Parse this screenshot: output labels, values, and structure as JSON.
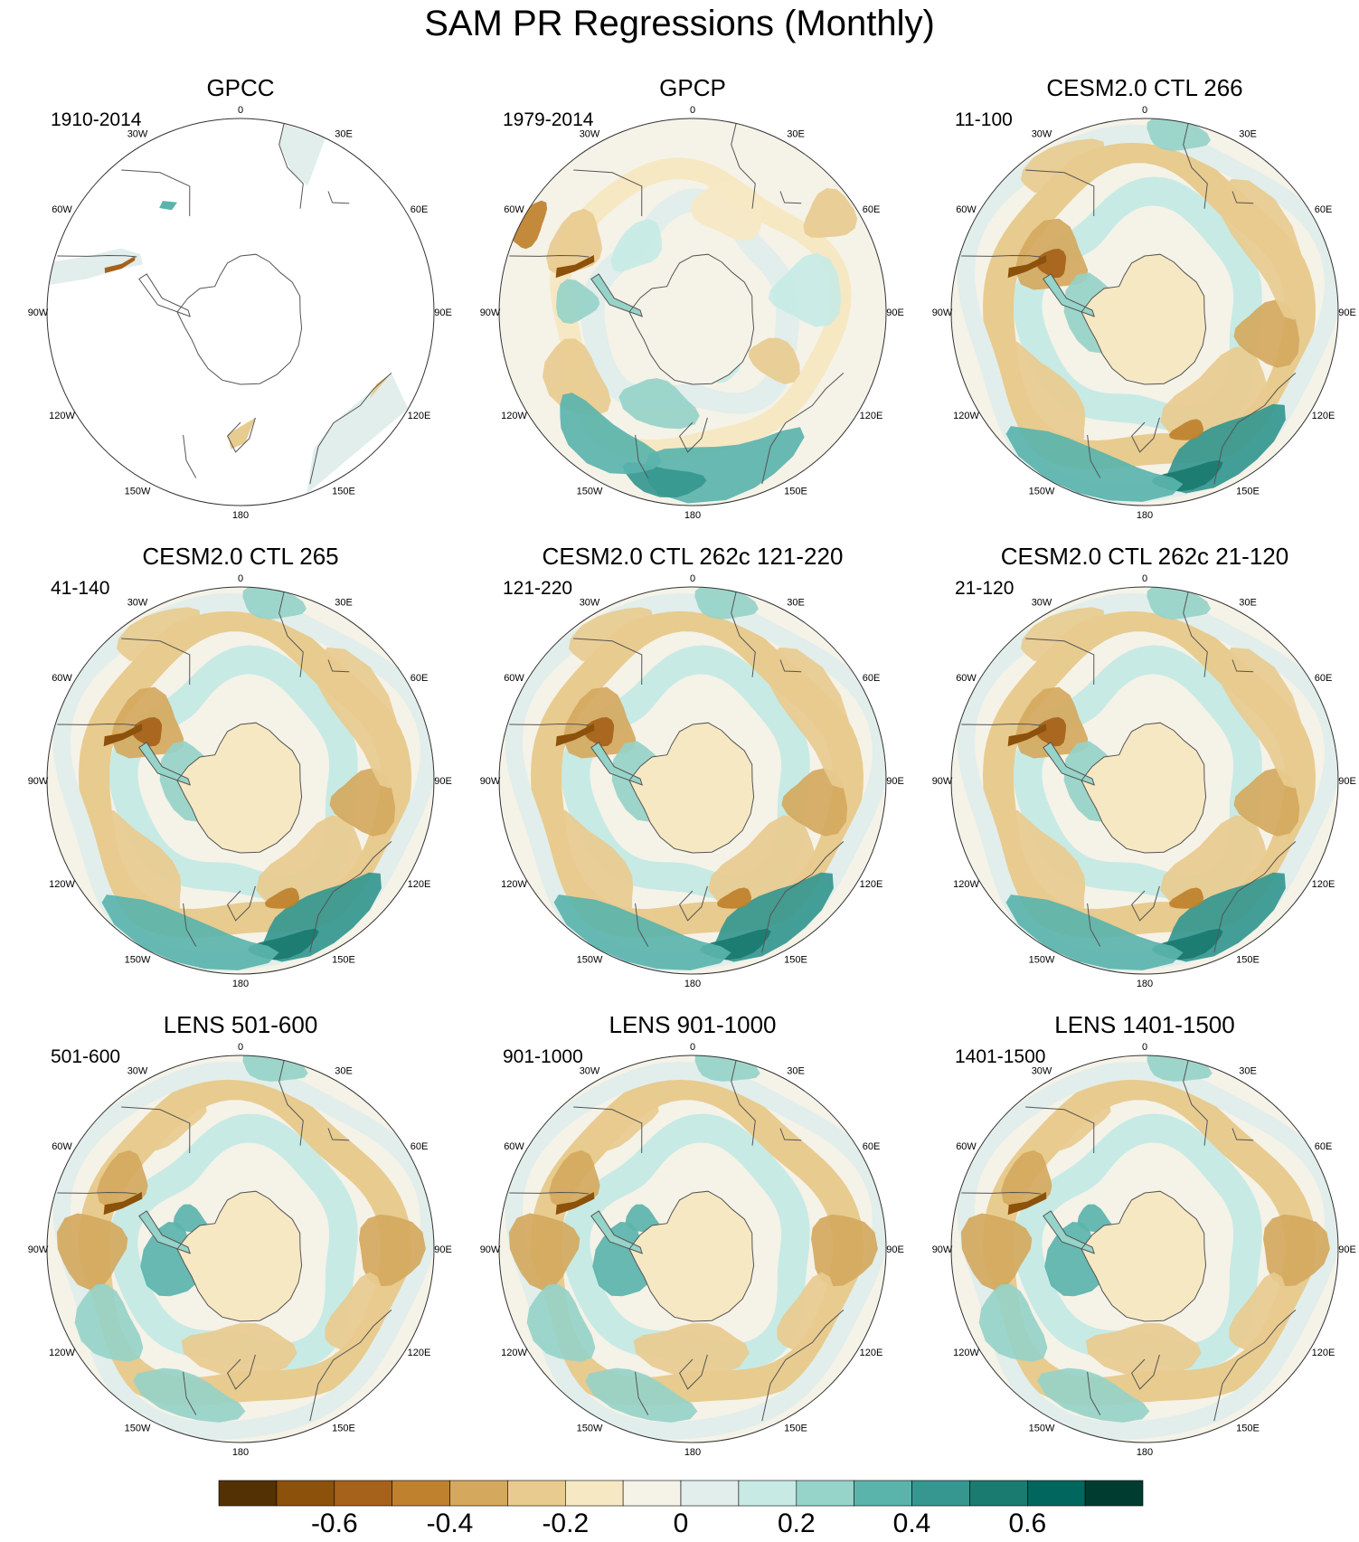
{
  "figure": {
    "title": "SAM PR Regressions (Monthly)"
  },
  "lon_labels": [
    "0",
    "30E",
    "60E",
    "90E",
    "120E",
    "150E",
    "180",
    "150W",
    "120W",
    "90W",
    "60W",
    "30W"
  ],
  "panels": [
    {
      "title": "GPCC",
      "period": "1910-2014",
      "mode": "land"
    },
    {
      "title": "GPCP",
      "period": "1979-2014",
      "mode": "obs"
    },
    {
      "title": "CESM2.0 CTL 266",
      "period": "11-100",
      "mode": "cesm"
    },
    {
      "title": "CESM2.0 CTL 265",
      "period": "41-140",
      "mode": "cesm"
    },
    {
      "title": "CESM2.0 CTL 262c 121-220",
      "period": "121-220",
      "mode": "cesm"
    },
    {
      "title": "CESM2.0 CTL 262c 21-120",
      "period": "21-120",
      "mode": "cesm"
    },
    {
      "title": "LENS 501-600",
      "period": "501-600",
      "mode": "lens"
    },
    {
      "title": "LENS 901-1000",
      "period": "901-1000",
      "mode": "lens"
    },
    {
      "title": "LENS 1401-1500",
      "period": "1401-1500",
      "mode": "lens"
    }
  ],
  "colorbar": {
    "colors": [
      "#543005",
      "#8c510a",
      "#a6611a",
      "#bf812d",
      "#d4a95e",
      "#e8cb8f",
      "#f6e8c3",
      "#f5f2e8",
      "#e1eeeb",
      "#c7eae5",
      "#96d3c8",
      "#5ab4ac",
      "#35978f",
      "#1a7b70",
      "#01665e",
      "#003c30"
    ],
    "tick_labels": [
      "-0.6",
      "-0.4",
      "-0.2",
      "0",
      "0.2",
      "0.4",
      "0.6"
    ]
  }
}
